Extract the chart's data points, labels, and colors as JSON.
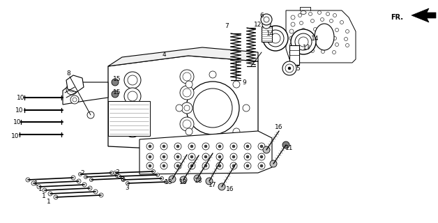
{
  "bg_color": "#ffffff",
  "fig_width": 6.28,
  "fig_height": 3.2,
  "dpi": 100,
  "lw_thin": 0.5,
  "lw_med": 0.8,
  "lw_thick": 1.2,
  "label_fontsize": 6.5
}
